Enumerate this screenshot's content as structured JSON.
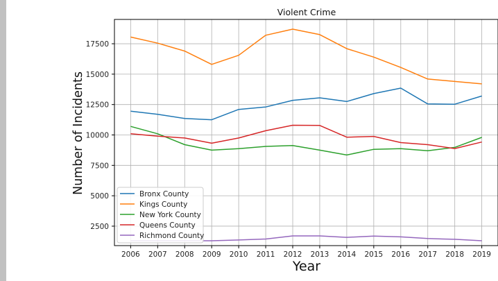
{
  "chart_data": {
    "type": "line",
    "title": "Violent Crime",
    "xlabel": "Year",
    "ylabel": "Number of Incidents",
    "x": [
      2006,
      2007,
      2008,
      2009,
      2010,
      2011,
      2012,
      2013,
      2014,
      2015,
      2016,
      2017,
      2018,
      2019
    ],
    "xlim": [
      2005.4,
      2019.6
    ],
    "ylim": [
      900,
      19500
    ],
    "yticks": [
      2500,
      5000,
      7500,
      10000,
      12500,
      15000,
      17500
    ],
    "ytick_labels": [
      "2500",
      "5000",
      "7500",
      "10000",
      "12500",
      "15000",
      "17500"
    ],
    "grid": true,
    "legend_position": "bottom-left",
    "series": [
      {
        "name": "Bronx County",
        "color": "#1f77b4",
        "values": [
          11950,
          11700,
          11350,
          11250,
          12100,
          12300,
          12850,
          13050,
          12750,
          13400,
          13850,
          12550,
          12530,
          13200
        ]
      },
      {
        "name": "Kings County",
        "color": "#ff7f0e",
        "values": [
          18050,
          17550,
          16900,
          15800,
          16550,
          18200,
          18700,
          18250,
          17100,
          16400,
          15550,
          14600,
          14400,
          14200
        ]
      },
      {
        "name": "New York County",
        "color": "#2ca02c",
        "values": [
          10700,
          10100,
          9200,
          8750,
          8870,
          9060,
          9130,
          8750,
          8350,
          8820,
          8870,
          8700,
          8980,
          9800
        ]
      },
      {
        "name": "Queens County",
        "color": "#d62728",
        "values": [
          10100,
          9900,
          9750,
          9320,
          9750,
          10350,
          10800,
          10780,
          9820,
          9880,
          9370,
          9200,
          8880,
          9420
        ]
      },
      {
        "name": "Richmond County",
        "color": "#9467bd",
        "values": [
          1300,
          1300,
          1300,
          1300,
          1360,
          1440,
          1700,
          1700,
          1580,
          1680,
          1620,
          1480,
          1420,
          1300
        ]
      }
    ]
  }
}
